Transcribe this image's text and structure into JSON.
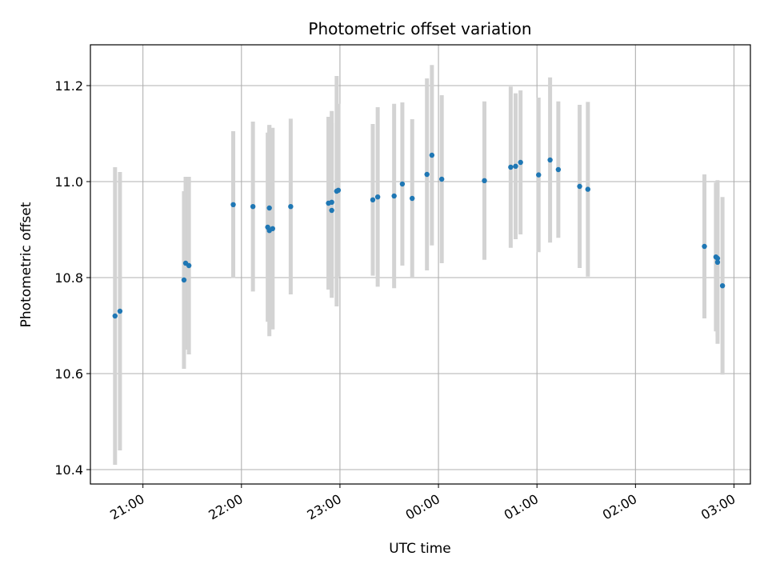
{
  "chart_data": {
    "type": "scatter",
    "title": "Photometric offset variation",
    "xlabel": "UTC time",
    "ylabel": "Photometric offset",
    "x_axis_type": "time",
    "xlim": [
      "20:28",
      "03:10"
    ],
    "ylim": [
      10.37,
      11.285
    ],
    "x_ticks": [
      "21:00",
      "22:00",
      "23:00",
      "00:00",
      "01:00",
      "02:00",
      "03:00"
    ],
    "y_ticks": [
      "10.4",
      "10.6",
      "10.8",
      "11.0",
      "11.2"
    ],
    "grid": true,
    "legend": "none",
    "series": [
      {
        "marker_color": "#1f77b4",
        "errorbar_color": "#d3d3d3",
        "points": [
          {
            "x": "20:43",
            "y": 10.72,
            "err": 0.31
          },
          {
            "x": "20:46",
            "y": 10.73,
            "err": 0.29
          },
          {
            "x": "21:25",
            "y": 10.795,
            "err": 0.185
          },
          {
            "x": "21:26",
            "y": 10.83,
            "err": 0.18
          },
          {
            "x": "21:28",
            "y": 10.825,
            "err": 0.185
          },
          {
            "x": "21:55",
            "y": 10.952,
            "err": 0.153
          },
          {
            "x": "22:07",
            "y": 10.948,
            "err": 0.177
          },
          {
            "x": "22:16",
            "y": 10.905,
            "err": 0.197
          },
          {
            "x": "22:17",
            "y": 10.898,
            "err": 0.22
          },
          {
            "x": "22:17",
            "y": 10.945,
            "err": 0.173
          },
          {
            "x": "22:19",
            "y": 10.902,
            "err": 0.21
          },
          {
            "x": "22:30",
            "y": 10.948,
            "err": 0.183
          },
          {
            "x": "22:53",
            "y": 10.955,
            "err": 0.18
          },
          {
            "x": "22:55",
            "y": 10.94,
            "err": 0.182
          },
          {
            "x": "22:55",
            "y": 10.957,
            "err": 0.19
          },
          {
            "x": "22:58",
            "y": 10.98,
            "err": 0.24
          },
          {
            "x": "22:59",
            "y": 10.982,
            "err": 0.18
          },
          {
            "x": "23:20",
            "y": 10.962,
            "err": 0.158
          },
          {
            "x": "23:23",
            "y": 10.968,
            "err": 0.187
          },
          {
            "x": "23:33",
            "y": 10.97,
            "err": 0.192
          },
          {
            "x": "23:38",
            "y": 10.995,
            "err": 0.17
          },
          {
            "x": "23:44",
            "y": 10.965,
            "err": 0.165
          },
          {
            "x": "23:53",
            "y": 11.015,
            "err": 0.2
          },
          {
            "x": "23:56",
            "y": 11.055,
            "err": 0.188
          },
          {
            "x": "00:02",
            "y": 11.005,
            "err": 0.175
          },
          {
            "x": "00:28",
            "y": 11.002,
            "err": 0.165
          },
          {
            "x": "00:44",
            "y": 11.03,
            "err": 0.168
          },
          {
            "x": "00:47",
            "y": 11.032,
            "err": 0.152
          },
          {
            "x": "00:50",
            "y": 11.04,
            "err": 0.15
          },
          {
            "x": "01:01",
            "y": 11.014,
            "err": 0.161
          },
          {
            "x": "01:08",
            "y": 11.045,
            "err": 0.172
          },
          {
            "x": "01:13",
            "y": 11.025,
            "err": 0.142
          },
          {
            "x": "01:26",
            "y": 10.99,
            "err": 0.17
          },
          {
            "x": "01:31",
            "y": 10.984,
            "err": 0.182
          },
          {
            "x": "02:42",
            "y": 10.865,
            "err": 0.15
          },
          {
            "x": "02:49",
            "y": 10.843,
            "err": 0.155
          },
          {
            "x": "02:50",
            "y": 10.84,
            "err": 0.163
          },
          {
            "x": "02:50",
            "y": 10.832,
            "err": 0.17
          },
          {
            "x": "02:53",
            "y": 10.783,
            "err": 0.185
          }
        ]
      }
    ]
  }
}
